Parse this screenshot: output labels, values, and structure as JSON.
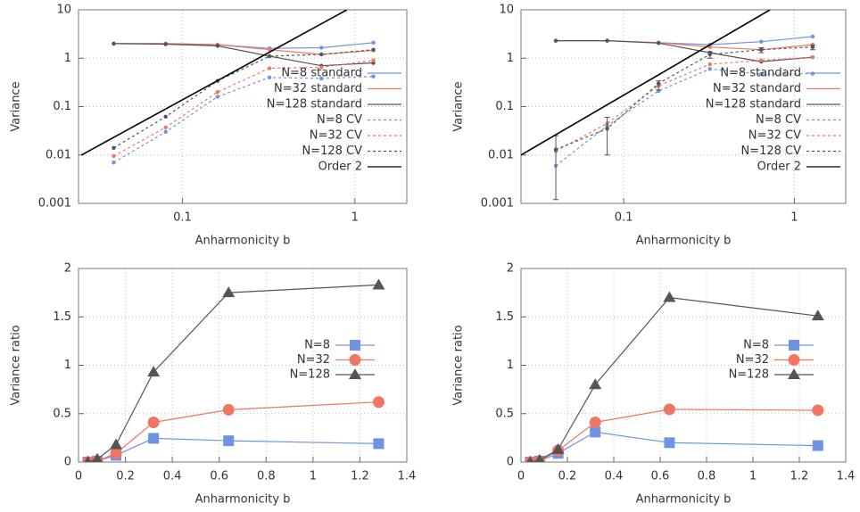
{
  "chart_data": [
    {
      "type": "line",
      "xlabel": "Anharmonicity b",
      "ylabel": "Variance",
      "xlog": true,
      "ylog": true,
      "xlim": [
        0.025,
        2
      ],
      "ylim": [
        0.001,
        10
      ],
      "xticks": [
        0.1,
        1
      ],
      "yticks": [
        0.001,
        0.01,
        0.1,
        1,
        10
      ],
      "grid": true,
      "legend": "right",
      "x": [
        0.04,
        0.08,
        0.16,
        0.32,
        0.64,
        1.28
      ],
      "series": [
        {
          "name": "N=8 standard",
          "color": "#6f93e3",
          "dash": false,
          "marker": "dot",
          "values": [
            2.0,
            2.0,
            1.9,
            1.6,
            1.65,
            2.1
          ]
        },
        {
          "name": "N=32 standard",
          "color": "#f07565",
          "dash": false,
          "marker": "dot",
          "values": [
            2.0,
            2.0,
            1.9,
            1.5,
            1.2,
            1.45
          ]
        },
        {
          "name": "N=128 standard",
          "color": "#555555",
          "dash": false,
          "marker": "dot",
          "values": [
            2.0,
            1.95,
            1.8,
            1.1,
            0.7,
            0.8
          ]
        },
        {
          "name": "N=8 CV",
          "color": "#6f93e3",
          "dash": true,
          "marker": "dot",
          "values": [
            0.007,
            0.03,
            0.16,
            0.4,
            0.38,
            0.42
          ]
        },
        {
          "name": "N=32 CV",
          "color": "#f07565",
          "dash": true,
          "marker": "dot",
          "values": [
            0.0095,
            0.037,
            0.2,
            0.62,
            0.65,
            0.9
          ]
        },
        {
          "name": "N=128 CV",
          "color": "#555555",
          "dash": true,
          "marker": "dot",
          "values": [
            0.014,
            0.062,
            0.34,
            1.1,
            1.2,
            1.5
          ]
        },
        {
          "name": "Order 2",
          "color": "#000000",
          "dash": false,
          "marker": "none",
          "x": [
            0.026,
            0.9
          ],
          "values": [
            0.01,
            10
          ]
        }
      ]
    },
    {
      "type": "line",
      "xlabel": "Anharmonicity b",
      "ylabel": "Variance",
      "xlog": true,
      "ylog": true,
      "xlim": [
        0.025,
        2
      ],
      "ylim": [
        0.001,
        10
      ],
      "xticks": [
        0.1,
        1
      ],
      "yticks": [
        0.001,
        0.01,
        0.1,
        1,
        10
      ],
      "grid": true,
      "legend": "right",
      "x": [
        0.04,
        0.08,
        0.16,
        0.32,
        0.64,
        1.28
      ],
      "series": [
        {
          "name": "N=8 standard",
          "color": "#6f93e3",
          "dash": false,
          "marker": "dot",
          "values": [
            2.3,
            2.3,
            2.1,
            1.9,
            2.2,
            2.8
          ]
        },
        {
          "name": "N=32 standard",
          "color": "#f07565",
          "dash": false,
          "marker": "dot",
          "values": [
            2.3,
            2.3,
            2.1,
            1.7,
            1.5,
            1.9
          ]
        },
        {
          "name": "N=128 standard",
          "color": "#555555",
          "dash": false,
          "marker": "dot",
          "values": [
            2.3,
            2.3,
            2.05,
            1.3,
            0.85,
            1.05
          ]
        },
        {
          "name": "N=8 CV",
          "color": "#6f93e3",
          "dash": true,
          "marker": "dot",
          "values": [
            0.006,
            0.04,
            0.21,
            0.6,
            0.47,
            0.48
          ]
        },
        {
          "name": "N=32 CV",
          "color": "#f07565",
          "dash": true,
          "marker": "dot",
          "values": [
            0.012,
            0.045,
            0.27,
            0.75,
            0.9,
            1.05
          ]
        },
        {
          "name": "N=128 CV",
          "color": "#555555",
          "dash": true,
          "marker": "dot",
          "values": [
            0.013,
            0.035,
            0.3,
            1.2,
            1.5,
            1.7
          ],
          "err_low": [
            0.0012,
            0.01,
            0.22,
            1.0,
            1.3,
            1.5
          ],
          "err_high": [
            0.025,
            0.06,
            0.34,
            1.35,
            1.65,
            1.85
          ]
        },
        {
          "name": "Order 2",
          "color": "#000000",
          "dash": false,
          "marker": "none",
          "x": [
            0.025,
            0.72
          ],
          "values": [
            0.01,
            10
          ]
        }
      ]
    },
    {
      "type": "line",
      "xlabel": "Anharmonicity b",
      "ylabel": "Variance ratio",
      "xlog": false,
      "ylog": false,
      "xlim": [
        0,
        1.4
      ],
      "ylim": [
        0,
        2
      ],
      "xticks": [
        0,
        0.2,
        0.4,
        0.6,
        0.8,
        1,
        1.2,
        1.4
      ],
      "yticks": [
        0,
        0.5,
        1,
        1.5,
        2
      ],
      "grid": true,
      "legend": "right",
      "x": [
        0.04,
        0.08,
        0.16,
        0.32,
        0.64,
        1.28
      ],
      "series": [
        {
          "name": "N=8",
          "color": "#6f93e3",
          "dash": false,
          "marker": "square",
          "values": [
            0.0,
            0.01,
            0.07,
            0.245,
            0.22,
            0.19
          ]
        },
        {
          "name": "N=32",
          "color": "#f07565",
          "dash": false,
          "marker": "circle",
          "values": [
            0.0,
            0.01,
            0.09,
            0.41,
            0.54,
            0.62
          ]
        },
        {
          "name": "N=128",
          "color": "#555555",
          "dash": false,
          "marker": "triangle",
          "values": [
            0.0,
            0.03,
            0.18,
            0.93,
            1.75,
            1.83
          ]
        }
      ]
    },
    {
      "type": "line",
      "xlabel": "Anharmonicity b",
      "ylabel": "Variance ratio",
      "xlog": false,
      "ylog": false,
      "xlim": [
        0,
        1.4
      ],
      "ylim": [
        0,
        2
      ],
      "xticks": [
        0,
        0.2,
        0.4,
        0.6,
        0.8,
        1,
        1.2,
        1.4
      ],
      "yticks": [
        0,
        0.5,
        1,
        1.5,
        2
      ],
      "grid": true,
      "legend": "right",
      "x": [
        0.04,
        0.08,
        0.16,
        0.32,
        0.64,
        1.28
      ],
      "series": [
        {
          "name": "N=8",
          "color": "#6f93e3",
          "dash": false,
          "marker": "square",
          "values": [
            0.0,
            0.01,
            0.09,
            0.31,
            0.2,
            0.17
          ]
        },
        {
          "name": "N=32",
          "color": "#f07565",
          "dash": false,
          "marker": "circle",
          "values": [
            0.0,
            0.01,
            0.12,
            0.41,
            0.545,
            0.535
          ]
        },
        {
          "name": "N=128",
          "color": "#555555",
          "dash": false,
          "marker": "triangle",
          "values": [
            0.0,
            0.02,
            0.13,
            0.8,
            1.7,
            1.51
          ]
        }
      ]
    }
  ]
}
